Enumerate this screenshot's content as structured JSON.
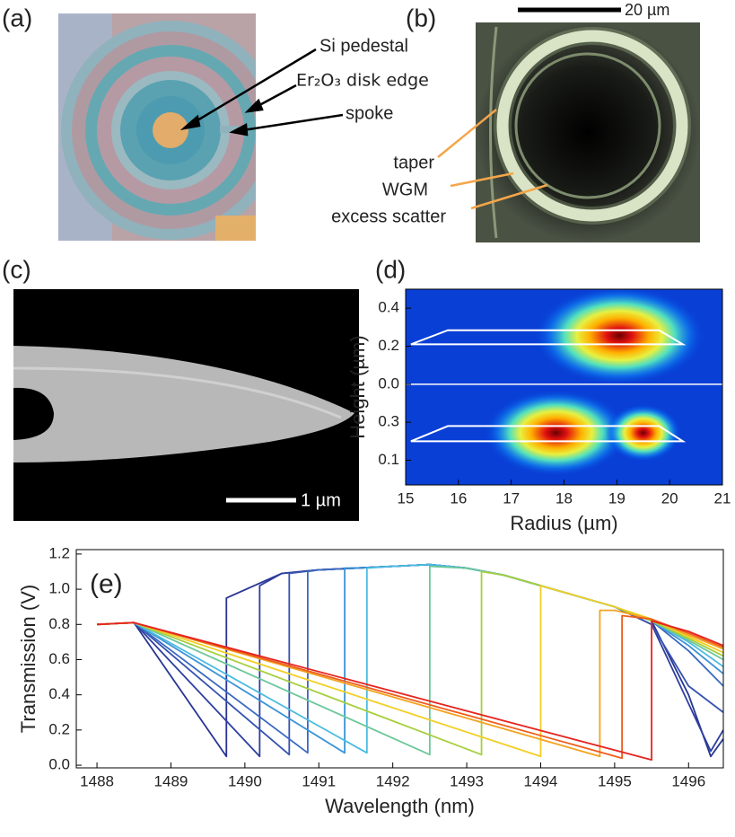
{
  "panel_labels": [
    "(a)",
    "(b)",
    "(c)",
    "(d)",
    "(e)"
  ],
  "panel_a": {
    "labels": [
      "Si pedestal",
      "Er₂O₃ disk edge",
      "spoke"
    ]
  },
  "panel_b": {
    "labels": [
      "taper",
      "WGM",
      "excess scatter"
    ],
    "scale_bar": "20 µm"
  },
  "panel_c": {
    "scale_bar": "1 µm"
  },
  "chart_data": [
    {
      "type": "heatmap",
      "xlabel": "Radius (µm)",
      "ylabel": "Height (µm)",
      "xlim": [
        15,
        21
      ],
      "xticks": [
        15,
        16,
        17,
        18,
        19,
        20,
        21
      ],
      "ylim": [
        -0.53,
        0.5
      ],
      "yticks": [
        0.4,
        0.2,
        {
          "value": 0,
          "label": "0.0"
        },
        {
          "value": -0.2,
          "label": "0.3"
        },
        {
          "value": -0.4,
          "label": "0.1"
        }
      ],
      "peaks": [
        {
          "x": 19.05,
          "y": 0.256
        },
        {
          "x": 17.85,
          "y": -0.256
        },
        {
          "x": 19.5,
          "y": -0.256
        }
      ],
      "outlines": [
        {
          "x": [
            15.1,
            15.8,
            19.8,
            20.25
          ],
          "y": [
            0.21,
            0.284,
            0.284,
            0.21
          ]
        },
        {
          "x": [
            15.1,
            15.8,
            19.8,
            20.25
          ],
          "y": [
            -0.3,
            -0.22,
            -0.22,
            -0.3
          ]
        }
      ]
    },
    {
      "type": "line",
      "xlabel": "Wavelength (nm)",
      "ylabel": "Transmission (V)",
      "xlim": [
        1487.72,
        1496.47
      ],
      "xticks": [
        1488,
        1489,
        1490,
        1491,
        1492,
        1493,
        1494,
        1495,
        1496
      ],
      "ylim": [
        -0.015,
        1.225
      ],
      "yticks": [
        {
          "value": 0,
          "label": "0.0"
        },
        0.2,
        0.4,
        0.6,
        0.8,
        {
          "value": 1,
          "label": "1.0"
        },
        1.2
      ],
      "series": [
        {
          "color": "#283593",
          "x": [
            1488,
            1488.5,
            1489.75,
            1489.75,
            1490.5,
            1491,
            1491.5,
            1492,
            1492.5,
            1493,
            1493.5,
            1494,
            1494.5,
            1495,
            1495.5,
            1496,
            1496.3,
            1496.47
          ],
          "values": [
            0.8,
            0.81,
            0.05,
            0.95,
            1.09,
            1.11,
            1.12,
            1.13,
            1.14,
            1.12,
            1.08,
            1.02,
            0.96,
            0.9,
            0.82,
            0.4,
            0.05,
            0.15
          ]
        },
        {
          "color": "#2e3f9f",
          "x": [
            1488,
            1488.5,
            1490.2,
            1490.2,
            1490.5,
            1491,
            1491.5,
            1492,
            1492.5,
            1493,
            1493.5,
            1494,
            1494.5,
            1495,
            1495.5,
            1496,
            1496.3,
            1496.47
          ],
          "values": [
            0.8,
            0.81,
            0.05,
            1.02,
            1.09,
            1.11,
            1.12,
            1.13,
            1.14,
            1.12,
            1.08,
            1.02,
            0.96,
            0.9,
            0.8,
            0.35,
            0.08,
            0.2
          ]
        },
        {
          "color": "#3552b0",
          "x": [
            1488,
            1488.5,
            1490.6,
            1490.6,
            1491,
            1491.5,
            1492,
            1492.5,
            1493,
            1493.5,
            1494,
            1494.5,
            1495,
            1495.5,
            1496,
            1496.47
          ],
          "values": [
            0.8,
            0.81,
            0.06,
            1.09,
            1.11,
            1.12,
            1.13,
            1.14,
            1.12,
            1.08,
            1.02,
            0.96,
            0.9,
            0.8,
            0.45,
            0.3
          ]
        },
        {
          "color": "#3b6ac0",
          "x": [
            1488,
            1488.5,
            1490.85,
            1490.85,
            1491,
            1491.5,
            1492,
            1492.5,
            1493,
            1493.5,
            1494,
            1494.5,
            1495,
            1495.5,
            1496,
            1496.47
          ],
          "values": [
            0.8,
            0.81,
            0.07,
            1.1,
            1.11,
            1.12,
            1.13,
            1.14,
            1.12,
            1.08,
            1.02,
            0.96,
            0.9,
            0.82,
            0.65,
            0.45
          ]
        },
        {
          "color": "#3a93d6",
          "x": [
            1488,
            1488.5,
            1491.35,
            1491.35,
            1491.5,
            1492,
            1492.5,
            1493,
            1493.5,
            1494,
            1494.5,
            1495,
            1495.5,
            1496,
            1496.47
          ],
          "values": [
            0.8,
            0.81,
            0.07,
            1.12,
            1.12,
            1.13,
            1.14,
            1.12,
            1.08,
            1.02,
            0.96,
            0.9,
            0.82,
            0.68,
            0.52
          ]
        },
        {
          "color": "#4bbbe0",
          "x": [
            1488,
            1488.5,
            1491.65,
            1491.65,
            1492,
            1492.5,
            1493,
            1493.5,
            1494,
            1494.5,
            1495,
            1495.5,
            1496,
            1496.47
          ],
          "values": [
            0.8,
            0.81,
            0.07,
            1.12,
            1.13,
            1.14,
            1.12,
            1.08,
            1.02,
            0.96,
            0.9,
            0.82,
            0.7,
            0.56
          ]
        },
        {
          "color": "#6cc79a",
          "x": [
            1488,
            1488.5,
            1492.5,
            1492.5,
            1493,
            1493.5,
            1494,
            1494.5,
            1495,
            1495.5,
            1496,
            1496.47
          ],
          "values": [
            0.8,
            0.81,
            0.06,
            1.13,
            1.12,
            1.08,
            1.02,
            0.96,
            0.9,
            0.82,
            0.71,
            0.6
          ]
        },
        {
          "color": "#a6cf3d",
          "x": [
            1488,
            1488.5,
            1493.2,
            1493.2,
            1493.5,
            1494,
            1494.5,
            1495,
            1495.5,
            1496,
            1496.47
          ],
          "values": [
            0.8,
            0.81,
            0.06,
            1.1,
            1.08,
            1.02,
            0.96,
            0.9,
            0.82,
            0.72,
            0.62
          ]
        },
        {
          "color": "#f1cf24",
          "x": [
            1488,
            1488.5,
            1494,
            1494,
            1494.5,
            1495,
            1495.5,
            1496,
            1496.47
          ],
          "values": [
            0.8,
            0.81,
            0.05,
            1.02,
            0.96,
            0.9,
            0.83,
            0.73,
            0.64
          ]
        },
        {
          "color": "#f4a21e",
          "x": [
            1488,
            1488.5,
            1494.8,
            1494.8,
            1495,
            1495.5,
            1496,
            1496.47
          ],
          "values": [
            0.8,
            0.81,
            0.05,
            0.88,
            0.88,
            0.83,
            0.74,
            0.66
          ]
        },
        {
          "color": "#ee5d1c",
          "x": [
            1488,
            1488.5,
            1495.1,
            1495.1,
            1495.5,
            1496,
            1496.47
          ],
          "values": [
            0.8,
            0.81,
            0.04,
            0.85,
            0.83,
            0.75,
            0.67
          ]
        },
        {
          "color": "#e52420",
          "x": [
            1488,
            1488.5,
            1495.5,
            1495.5,
            1496,
            1496.47
          ],
          "values": [
            0.8,
            0.81,
            0.03,
            0.82,
            0.76,
            0.68
          ]
        }
      ]
    }
  ]
}
